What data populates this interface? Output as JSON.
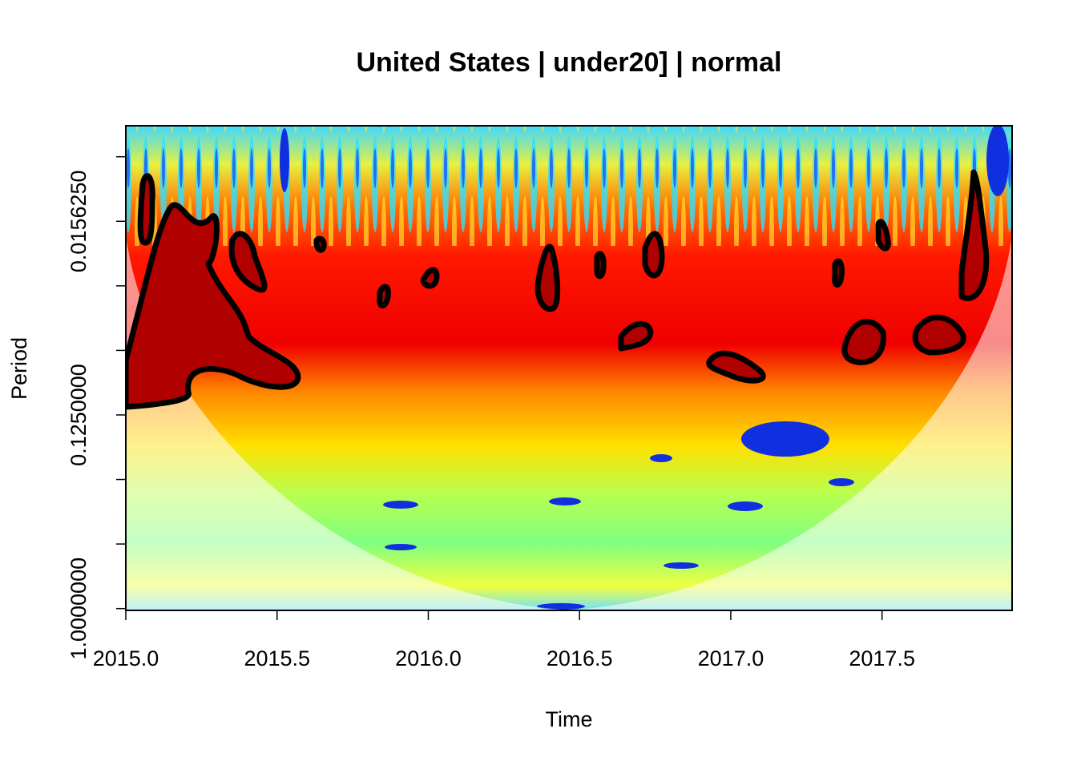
{
  "chart_data": {
    "type": "heatmap",
    "title": "United States | under20] | normal",
    "xlabel": "Time",
    "ylabel": "Period",
    "xlim": [
      2015.0,
      2017.93
    ],
    "xticks": [
      {
        "value": 2015.0,
        "label": "2015.0"
      },
      2015.5,
      {
        "value": 2016.0,
        "label": "2016.0"
      },
      2016.5,
      {
        "value": 2017.0,
        "label": "2017.0"
      },
      2017.5
    ],
    "ylim": [
      1.02,
      0.0056
    ],
    "yscale": "log",
    "yticks": [
      {
        "value": 1,
        "label": "1.0000000"
      },
      {
        "value": 0.5,
        "label": null
      },
      {
        "value": 0.25,
        "label": null
      },
      {
        "value": 0.125,
        "label": "0.1250000"
      },
      {
        "value": 0.0625,
        "label": null
      },
      {
        "value": 0.03125,
        "label": null
      },
      {
        "value": 0.015625,
        "label": "0.0156250"
      },
      {
        "value": 0.0078125,
        "label": null
      }
    ]
  }
}
